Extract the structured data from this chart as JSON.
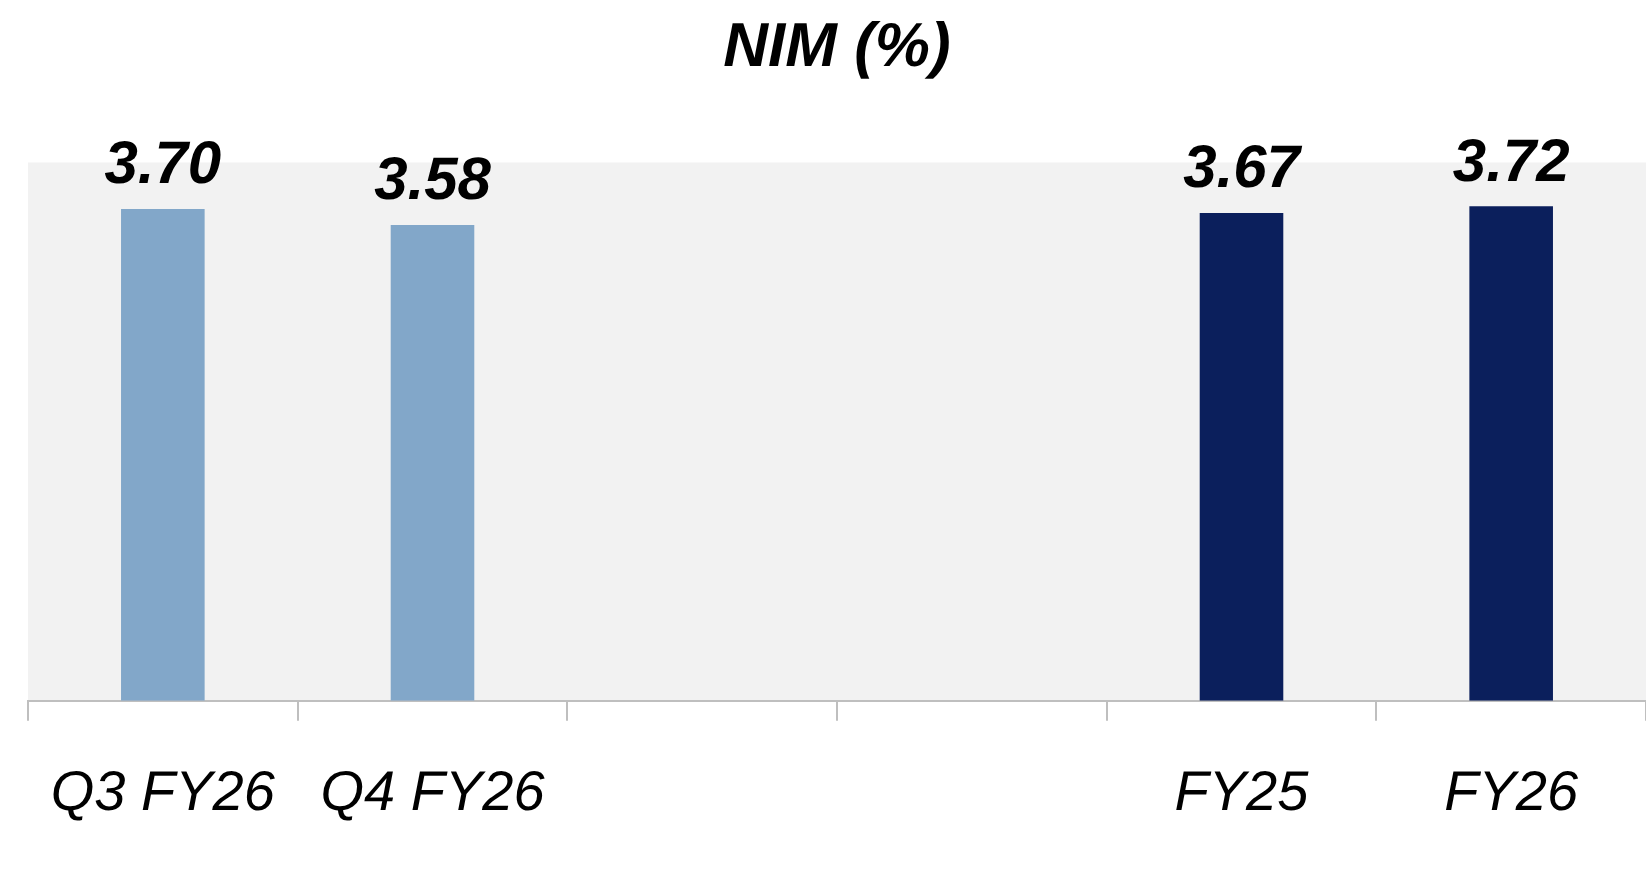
{
  "chart_data": {
    "type": "bar",
    "title": "NIM (%)",
    "categories": [
      "Q3 FY26",
      "Q4 FY26",
      null,
      null,
      "FY25",
      "FY26"
    ],
    "values": [
      3.7,
      3.58,
      null,
      null,
      3.67,
      3.72
    ],
    "colors": [
      "#82a7c9",
      "#82a7c9",
      "#82a7c9",
      "#82a7c9",
      "#0b1f5c",
      "#0b1f5c"
    ],
    "value_labels": [
      "3.70",
      "3.58",
      null,
      null,
      "3.67",
      "3.72"
    ],
    "ylim": [
      0,
      4.05
    ],
    "tick_labels": "x",
    "grid": false,
    "legend": false
  }
}
